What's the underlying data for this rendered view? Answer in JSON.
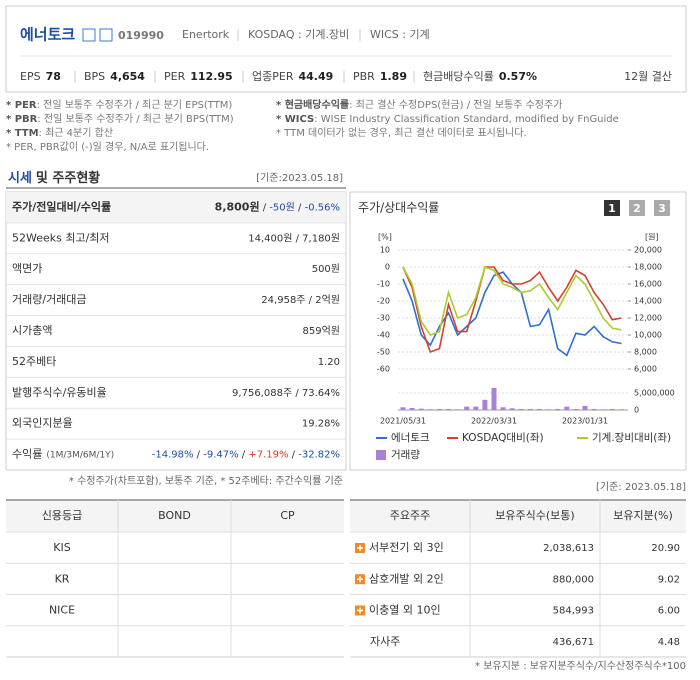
{
  "header": {
    "name": "에너토크",
    "code": "019990",
    "english_name": "Enertork",
    "market": "KOSDAQ : 기계.장비",
    "wics": "WICS : 기계",
    "metrics": [
      {
        "label": "EPS",
        "value": "78"
      },
      {
        "label": "BPS",
        "value": "4,654"
      },
      {
        "label": "PER",
        "value": "112.95"
      },
      {
        "label": "업종PER",
        "value": "44.49"
      },
      {
        "label": "PBR",
        "value": "1.89"
      },
      {
        "label": "현금배당수익률",
        "value": "0.57%"
      }
    ],
    "settlement": "12월 결산"
  },
  "notes": {
    "left": [
      {
        "term": "* PER",
        "desc": ": 전일 보통주 수정주가 / 최근 분기 EPS(TTM)"
      },
      {
        "term": "* PBR",
        "desc": ": 전일 보통주 수정주가 / 최근 분기 BPS(TTM)"
      },
      {
        "term": "* TTM",
        "desc": ": 최근 4분기 합산"
      },
      {
        "term": "* PER, PBR값이 (-)일 경우, N/A로 표기됩니다.",
        "desc": null
      }
    ],
    "right": [
      {
        "term": "* 현금배당수익률",
        "desc": ": 최근 결산 수정DPS(현금) / 전일 보통주 수정주가"
      },
      {
        "term": "* WICS",
        "desc": ": WISE Industry Classification Standard, modified by FnGuide"
      },
      {
        "term": "* TTM 데이터가 없는 경우, 최근 결산 데이터로 표시됩니다.",
        "desc": null
      }
    ]
  },
  "quote": {
    "title_highlight": "시세",
    "title_rest": "및 주주현황",
    "date": "[기준:2023.05.18]",
    "rows": [
      {
        "label": "주가/전일대비/수익률",
        "value": [
          "8,800원",
          " / ",
          "-50원",
          " / ",
          "-0.56%"
        ]
      },
      {
        "label": "52Weeks 최고/최저",
        "value": [
          "14,400원 / 7,180원"
        ]
      },
      {
        "label": "액면가",
        "value": [
          "500원"
        ]
      },
      {
        "label": "거래량/거래대금",
        "value": [
          "24,958주 / 2억원"
        ]
      },
      {
        "label": "시가총액",
        "value": [
          "859억원"
        ]
      },
      {
        "label": "52주베타",
        "value": [
          "1.20"
        ]
      },
      {
        "label": "발행주식수/유동비율",
        "value": [
          "9,756,088주 / 73.64%"
        ]
      },
      {
        "label": "외국인지분율",
        "value": [
          "19.28%"
        ]
      },
      {
        "label": "수익률",
        "sublabel": "(1M/3M/6M/1Y)",
        "value": [
          "-14.98%",
          " / ",
          "-9.47%",
          " / ",
          "+7.19%",
          " / ",
          "-32.82%"
        ]
      }
    ],
    "footnote": "* 수정주가(차트포함), 보통주 기준, * 52주베타: 주간수익률 기준"
  },
  "price_chart": {
    "type": "line",
    "title": "주가/상대수익률",
    "buttons": [
      "1",
      "2",
      "3"
    ],
    "y_unit": "[%]",
    "y2_unit": "[원]",
    "categories": [
      "2021/05/31",
      null,
      null,
      null,
      null,
      null,
      null,
      null,
      null,
      null,
      "2022/03/31",
      null,
      null,
      null,
      null,
      null,
      null,
      null,
      null,
      null,
      "2023/01/31",
      null,
      null,
      null,
      null
    ],
    "ylim": [
      -60,
      10
    ],
    "yticks": [
      10,
      0,
      -10,
      -20,
      -30,
      -40,
      -50,
      -60
    ],
    "y2lim": [
      6000,
      20000
    ],
    "y2ticks": [
      {
        "value": 20000,
        "label": "20,000"
      },
      {
        "value": 18000,
        "label": "18,000"
      },
      {
        "value": 16000,
        "label": "16,000"
      },
      {
        "value": 14000,
        "label": "14,000"
      },
      {
        "value": 12000,
        "label": "12,000"
      },
      {
        "value": 10000,
        "label": "10,000"
      },
      {
        "value": 8000,
        "label": "8,000"
      },
      {
        "value": 6000,
        "label": "6,000"
      }
    ],
    "volume_lim": [
      0,
      7000000
    ],
    "volume_ticks": [
      {
        "value": 5000000,
        "label": "5,000,000"
      },
      0
    ],
    "series": [
      {
        "name": "에너토크",
        "color": "#2f6fd1",
        "axis": "y2",
        "values": [
          16600,
          14000,
          10000,
          8800,
          11000,
          12600,
          10000,
          11000,
          12000,
          15000,
          17000,
          17400,
          16000,
          15000,
          11000,
          11200,
          13000,
          8400,
          7600,
          10200,
          10000,
          11000,
          9800,
          9200,
          9000
        ]
      },
      {
        "name": "KOSDAQ대비(좌)",
        "color": "#d4412a",
        "values": [
          0,
          -12,
          -35,
          -50,
          -48,
          -22,
          -38,
          -38,
          -20,
          0,
          0,
          -8,
          -10,
          -10,
          -8,
          -3,
          -12,
          -20,
          -12,
          -2,
          -5,
          -15,
          -22,
          -31,
          -30
        ]
      },
      {
        "name": "기계.장비대비(좌)",
        "color": "#a9cc2e",
        "values": [
          0,
          -10,
          -32,
          -40,
          -38,
          -15,
          -30,
          -28,
          -18,
          0,
          -2,
          -10,
          -12,
          -15,
          -14,
          -10,
          -18,
          -25,
          -15,
          -5,
          -10,
          -20,
          -30,
          -36,
          -37
        ]
      },
      {
        "name": "거래량",
        "color": "#a782d6",
        "axis": "volume",
        "values": [
          800000,
          600000,
          400000,
          200000,
          300000,
          300000,
          200000,
          1000000,
          1000000,
          3000000,
          6500000,
          800000,
          500000,
          300000,
          300000,
          300000,
          200000,
          300000,
          1000000,
          300000,
          1200000,
          300000,
          200000,
          300000,
          200000
        ]
      }
    ]
  },
  "credit_table": {
    "headers": [
      "신용등급",
      "BOND",
      "CP"
    ],
    "rows": [
      [
        "KIS"
      ],
      [
        "KR"
      ],
      [
        "NICE"
      ]
    ]
  },
  "shareholders": {
    "date": "[기준: 2023.05.18]",
    "headers": [
      "주요주주",
      "보유주식수(보통)",
      "보유지분(%)"
    ],
    "rows": [
      {
        "name": "서부전기 외 3인",
        "shares": "2,038,613",
        "pct": "20.90",
        "expandable": true
      },
      {
        "name": "삼호개발 외 2인",
        "shares": "880,000",
        "pct": "9.02",
        "expandable": true
      },
      {
        "name": "이충열 외 10인",
        "shares": "584,993",
        "pct": "6.00",
        "expandable": true
      },
      {
        "name": "자사주",
        "shares": "436,671",
        "pct": "4.48",
        "expandable": false
      }
    ],
    "footnote": "* 보유지분 : 보유지분주식수/지수산정주식수*100"
  }
}
